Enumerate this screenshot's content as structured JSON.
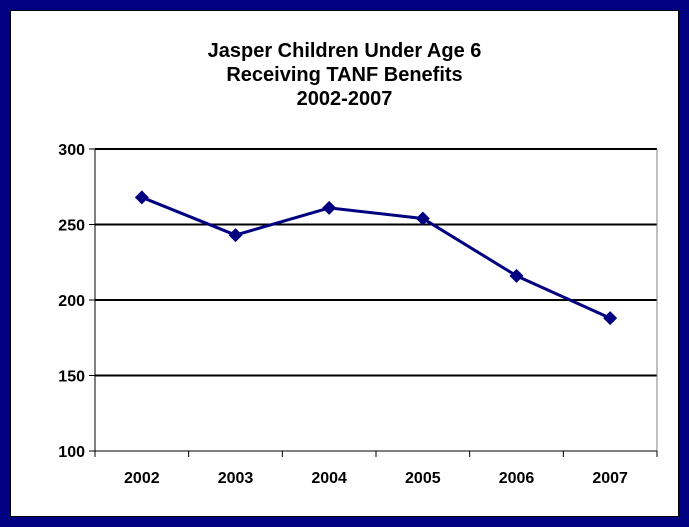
{
  "chart_data": {
    "type": "line",
    "title_lines": [
      "Jasper Children Under Age 6",
      "Receiving TANF Benefits",
      "2002-2007"
    ],
    "xlabel": "",
    "ylabel": "",
    "categories": [
      "2002",
      "2003",
      "2004",
      "2005",
      "2006",
      "2007"
    ],
    "series": [
      {
        "values": [
          268,
          243,
          261,
          254,
          216,
          188
        ]
      }
    ],
    "ylim": [
      100,
      300
    ],
    "yticks": [
      "100",
      "150",
      "200",
      "250",
      "300"
    ],
    "grid": "horizontal",
    "legend": "none"
  },
  "colors": {
    "frame": "#000080",
    "series": "#000080",
    "background": "#ffffff"
  }
}
